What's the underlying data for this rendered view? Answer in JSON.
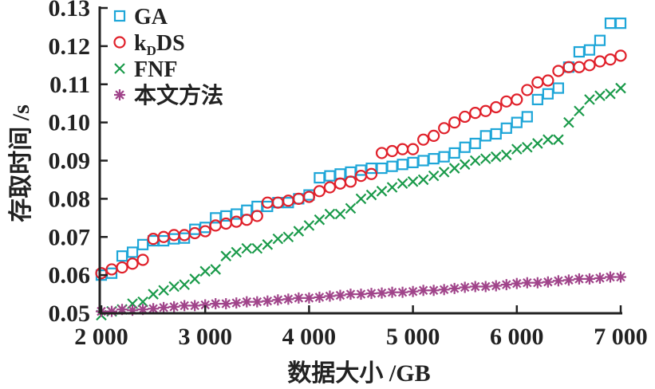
{
  "chart_data": {
    "type": "scatter",
    "title": "",
    "xlabel": "数据大小 /GB",
    "ylabel": "存取时间 /s",
    "xlim": [
      2000,
      7000
    ],
    "ylim": [
      0.05,
      0.13
    ],
    "xticks": [
      2000,
      3000,
      4000,
      5000,
      6000,
      7000
    ],
    "xtick_labels": [
      "2 000",
      "3 000",
      "4 000",
      "5 000",
      "6 000",
      "7 000"
    ],
    "yticks": [
      0.05,
      0.06,
      0.07,
      0.08,
      0.09,
      0.1,
      0.11,
      0.12,
      0.13
    ],
    "ytick_labels": [
      "0.05",
      "0.06",
      "0.07",
      "0.08",
      "0.09",
      "0.10",
      "0.11",
      "0.12",
      "0.13"
    ],
    "grid": false,
    "legend_position": "top-left",
    "x_start": 2000,
    "x_step": 100,
    "series": [
      {
        "name": "GA",
        "label_main": "GA",
        "marker": "square",
        "color": "#1ea6d8",
        "values": [
          0.06,
          0.0605,
          0.065,
          0.066,
          0.068,
          0.069,
          0.069,
          0.0695,
          0.0697,
          0.072,
          0.0725,
          0.075,
          0.0755,
          0.076,
          0.077,
          0.078,
          0.078,
          0.079,
          0.079,
          0.08,
          0.081,
          0.0855,
          0.086,
          0.0865,
          0.087,
          0.0875,
          0.088,
          0.088,
          0.0885,
          0.089,
          0.0895,
          0.09,
          0.0905,
          0.091,
          0.092,
          0.0935,
          0.0945,
          0.0965,
          0.097,
          0.0985,
          0.1,
          0.1015,
          0.106,
          0.1075,
          0.109,
          0.1145,
          0.1185,
          0.119,
          0.1215,
          0.126,
          0.126
        ]
      },
      {
        "name": "kDDS",
        "label_main": "k",
        "label_sub": "D",
        "label_rest": "DS",
        "marker": "circle",
        "color": "#e0202a",
        "values": [
          0.0605,
          0.0615,
          0.062,
          0.063,
          0.064,
          0.0695,
          0.07,
          0.0705,
          0.0705,
          0.071,
          0.0715,
          0.073,
          0.0735,
          0.074,
          0.0745,
          0.0755,
          0.079,
          0.079,
          0.0795,
          0.08,
          0.0805,
          0.082,
          0.083,
          0.084,
          0.0845,
          0.086,
          0.0865,
          0.092,
          0.0925,
          0.093,
          0.093,
          0.0955,
          0.0965,
          0.0985,
          0.1,
          0.1015,
          0.1025,
          0.103,
          0.104,
          0.1055,
          0.106,
          0.1085,
          0.1105,
          0.111,
          0.1135,
          0.1145,
          0.1145,
          0.115,
          0.116,
          0.1165,
          0.1175
        ]
      },
      {
        "name": "FNF",
        "label_main": "FNF",
        "marker": "x",
        "color": "#1a9a4a",
        "values": [
          0.0495,
          0.0505,
          0.051,
          0.0525,
          0.053,
          0.055,
          0.056,
          0.057,
          0.0575,
          0.059,
          0.061,
          0.0615,
          0.065,
          0.066,
          0.067,
          0.067,
          0.068,
          0.0695,
          0.07,
          0.0715,
          0.073,
          0.0745,
          0.076,
          0.076,
          0.0775,
          0.08,
          0.081,
          0.082,
          0.083,
          0.084,
          0.0845,
          0.085,
          0.086,
          0.087,
          0.088,
          0.089,
          0.09,
          0.0905,
          0.091,
          0.0915,
          0.093,
          0.0935,
          0.0945,
          0.0955,
          0.0955,
          0.1,
          0.103,
          0.106,
          0.107,
          0.1075,
          0.109
        ]
      },
      {
        "name": "本文方法",
        "label_main": "本文方法",
        "marker": "star",
        "color": "#a0448a",
        "values": [
          0.0505,
          0.0505,
          0.051,
          0.0508,
          0.051,
          0.0512,
          0.0515,
          0.0517,
          0.052,
          0.052,
          0.0522,
          0.0525,
          0.0525,
          0.0527,
          0.053,
          0.053,
          0.0532,
          0.0535,
          0.0537,
          0.054,
          0.054,
          0.0542,
          0.0545,
          0.0547,
          0.055,
          0.055,
          0.0552,
          0.0553,
          0.0555,
          0.0555,
          0.0557,
          0.056,
          0.056,
          0.0562,
          0.0565,
          0.0568,
          0.057,
          0.057,
          0.0572,
          0.0575,
          0.0578,
          0.058,
          0.058,
          0.0582,
          0.0585,
          0.0587,
          0.059,
          0.059,
          0.0592,
          0.0595,
          0.0595
        ]
      }
    ]
  }
}
